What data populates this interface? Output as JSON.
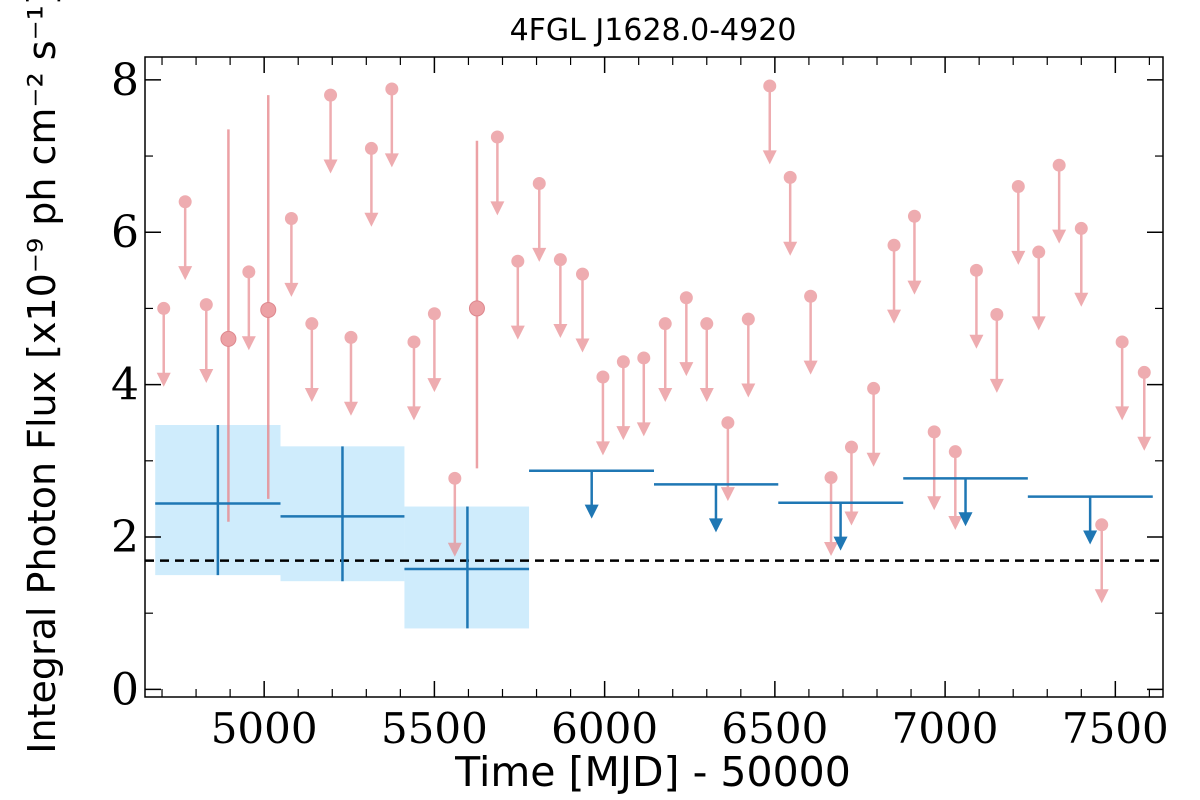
{
  "chart_data": {
    "type": "scatter",
    "title": "4FGL J1628.0-4920",
    "xlabel": "Time [MJD] - 50000",
    "ylabel": "Integral Photon Flux [x10⁻⁹ ph cm⁻² s⁻¹]",
    "xlim": [
      4650,
      7640
    ],
    "ylim": [
      -0.1,
      8.3
    ],
    "xticks": [
      5000,
      5500,
      6000,
      6500,
      7000,
      7500
    ],
    "xtick_labels": [
      "5000",
      "5500",
      "6000",
      "6500",
      "7000",
      "7500"
    ],
    "yticks": [
      0,
      2,
      4,
      6,
      8
    ],
    "ytick_labels": [
      "0",
      "2",
      "4",
      "6",
      "8"
    ],
    "grid": false,
    "legend": "none",
    "colors": {
      "short_bin": "#e88a8f",
      "long_bin": "#1f77b4",
      "long_bin_band": "#bfe6fb",
      "reference_line": "#000000"
    },
    "reference_flux": 1.69,
    "short_bin_detections": [
      {
        "x": 4895,
        "y": 4.6,
        "y_low": 2.2,
        "y_high": 7.35
      },
      {
        "x": 5012,
        "y": 4.98,
        "y_low": 2.5,
        "y_high": 7.8
      },
      {
        "x": 5625,
        "y": 5.0,
        "y_low": 2.9,
        "y_high": 7.2
      }
    ],
    "short_bin_upper_limits": [
      {
        "x": 4705,
        "y": 5.0
      },
      {
        "x": 4768,
        "y": 6.4
      },
      {
        "x": 4830,
        "y": 5.05
      },
      {
        "x": 4955,
        "y": 5.48
      },
      {
        "x": 5080,
        "y": 6.18
      },
      {
        "x": 5140,
        "y": 4.8
      },
      {
        "x": 5195,
        "y": 7.8
      },
      {
        "x": 5255,
        "y": 4.62
      },
      {
        "x": 5315,
        "y": 7.1
      },
      {
        "x": 5375,
        "y": 7.88
      },
      {
        "x": 5440,
        "y": 4.56
      },
      {
        "x": 5500,
        "y": 4.93
      },
      {
        "x": 5560,
        "y": 2.77
      },
      {
        "x": 5685,
        "y": 7.25
      },
      {
        "x": 5745,
        "y": 5.62
      },
      {
        "x": 5808,
        "y": 6.64
      },
      {
        "x": 5870,
        "y": 5.64
      },
      {
        "x": 5935,
        "y": 5.45
      },
      {
        "x": 5995,
        "y": 4.1
      },
      {
        "x": 6055,
        "y": 4.3
      },
      {
        "x": 6115,
        "y": 4.35
      },
      {
        "x": 6178,
        "y": 4.8
      },
      {
        "x": 6240,
        "y": 5.14
      },
      {
        "x": 6300,
        "y": 4.8
      },
      {
        "x": 6362,
        "y": 3.5
      },
      {
        "x": 6422,
        "y": 4.86
      },
      {
        "x": 6485,
        "y": 7.92
      },
      {
        "x": 6545,
        "y": 6.72
      },
      {
        "x": 6605,
        "y": 5.16
      },
      {
        "x": 6665,
        "y": 2.78
      },
      {
        "x": 6725,
        "y": 3.18
      },
      {
        "x": 6790,
        "y": 3.95
      },
      {
        "x": 6850,
        "y": 5.83
      },
      {
        "x": 6910,
        "y": 6.21
      },
      {
        "x": 6968,
        "y": 3.38
      },
      {
        "x": 7030,
        "y": 3.12
      },
      {
        "x": 7092,
        "y": 5.5
      },
      {
        "x": 7152,
        "y": 4.92
      },
      {
        "x": 7215,
        "y": 6.6
      },
      {
        "x": 7275,
        "y": 5.74
      },
      {
        "x": 7335,
        "y": 6.88
      },
      {
        "x": 7400,
        "y": 6.05
      },
      {
        "x": 7460,
        "y": 2.16
      },
      {
        "x": 7520,
        "y": 4.56
      },
      {
        "x": 7585,
        "y": 4.16
      }
    ],
    "long_bin_detections": [
      {
        "x_start": 4680,
        "x_end": 5048,
        "x": 4864,
        "y": 2.44,
        "y_low": 1.5,
        "y_high": 3.47
      },
      {
        "x_start": 5048,
        "x_end": 5412,
        "x": 5230,
        "y": 2.27,
        "y_low": 1.42,
        "y_high": 3.19
      },
      {
        "x_start": 5412,
        "x_end": 5778,
        "x": 5597,
        "y": 1.58,
        "y_low": 0.8,
        "y_high": 2.4
      }
    ],
    "long_bin_upper_limits": [
      {
        "x_start": 5778,
        "x_end": 6145,
        "x": 5962,
        "y": 2.87
      },
      {
        "x_start": 6145,
        "x_end": 6510,
        "x": 6327,
        "y": 2.69
      },
      {
        "x_start": 6510,
        "x_end": 6877,
        "x": 6693,
        "y": 2.45
      },
      {
        "x_start": 6877,
        "x_end": 7243,
        "x": 7060,
        "y": 2.77
      },
      {
        "x_start": 7243,
        "x_end": 7610,
        "x": 7426,
        "y": 2.53
      }
    ]
  }
}
